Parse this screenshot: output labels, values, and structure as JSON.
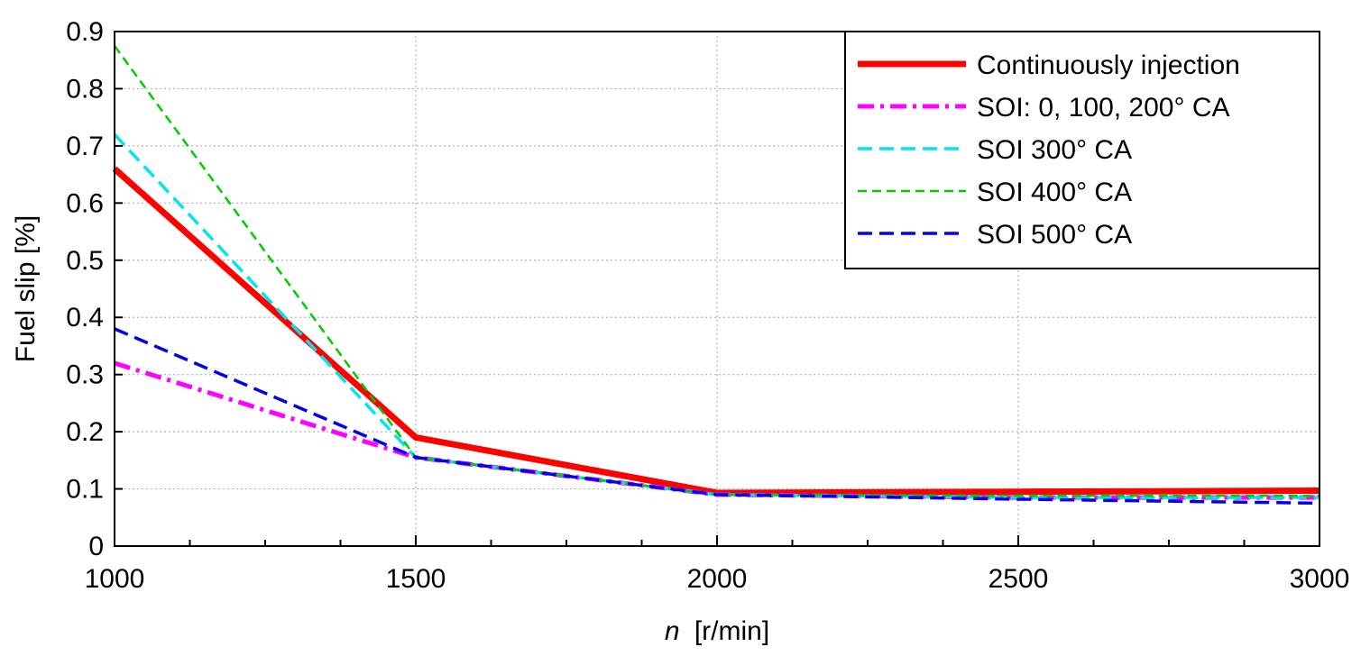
{
  "chart_data": {
    "type": "line",
    "title": "",
    "xlabel_var": "n",
    "xlabel_unit": "[r/min]",
    "ylabel": "Fuel slip [%]",
    "xlim": [
      1000,
      3000
    ],
    "ylim": [
      0,
      0.9
    ],
    "xticks": [
      "1000",
      "1500",
      "2000",
      "2500",
      "3000"
    ],
    "yticks": [
      "0",
      "0.1",
      "0.2",
      "0.3",
      "0.4",
      "0.5",
      "0.6",
      "0.7",
      "0.8",
      "0.9"
    ],
    "grid": true,
    "legend_position": "top-right",
    "x": [
      1000,
      1500,
      2000,
      2500,
      3000
    ],
    "series": [
      {
        "name": "Continuously injection",
        "values": [
          0.66,
          0.19,
          0.093,
          0.095,
          0.097
        ],
        "color": "#ff0000",
        "dash": "solid",
        "width": 7
      },
      {
        "name": "SOI: 0, 100, 200° CA",
        "values": [
          0.32,
          0.155,
          0.09,
          0.085,
          0.085
        ],
        "color": "#ff00ff",
        "dash": "dashdot",
        "width": 5
      },
      {
        "name": "SOI 300° CA",
        "values": [
          0.72,
          0.155,
          0.09,
          0.085,
          0.085
        ],
        "color": "#00e5ee",
        "dash": "dashed",
        "width": 3.5
      },
      {
        "name": "SOI 400° CA",
        "values": [
          0.875,
          0.155,
          0.09,
          0.088,
          0.088
        ],
        "color": "#00cc00",
        "dash": "dashed-fine",
        "width": 2.5
      },
      {
        "name": "SOI 500° CA",
        "values": [
          0.38,
          0.155,
          0.09,
          0.082,
          0.075
        ],
        "color": "#0000ee",
        "dash": "dashed",
        "width": 3.5
      }
    ]
  }
}
